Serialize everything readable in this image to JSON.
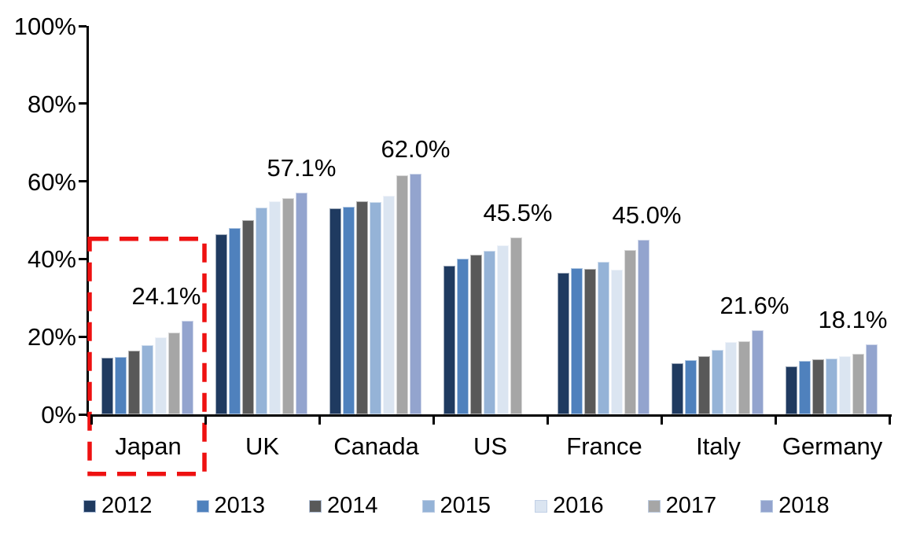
{
  "chart_data": {
    "type": "bar",
    "title": "",
    "xlabel": "",
    "ylabel": "",
    "categories": [
      "Japan",
      "UK",
      "Canada",
      "US",
      "France",
      "Italy",
      "Germany"
    ],
    "series": [
      {
        "name": "2012",
        "color": "#1F3A60",
        "values": [
          14.5,
          46.3,
          53.1,
          38.2,
          36.5,
          13.2,
          12.3
        ]
      },
      {
        "name": "2013",
        "color": "#4F81BD",
        "values": [
          14.8,
          47.9,
          53.4,
          40.0,
          37.6,
          13.9,
          13.7
        ]
      },
      {
        "name": "2014",
        "color": "#595959",
        "values": [
          16.3,
          50.0,
          54.9,
          41.0,
          37.5,
          15.0,
          14.1
        ]
      },
      {
        "name": "2015",
        "color": "#95B3D7",
        "values": [
          17.9,
          53.3,
          54.7,
          42.2,
          39.2,
          16.6,
          14.4
        ]
      },
      {
        "name": "2016",
        "color": "#DBE5F1",
        "values": [
          19.8,
          54.8,
          56.2,
          43.6,
          37.2,
          18.6,
          15.0
        ]
      },
      {
        "name": "2017",
        "color": "#A6A6A6",
        "values": [
          21.0,
          55.7,
          61.5,
          45.5,
          42.3,
          18.9,
          15.6
        ]
      },
      {
        "name": "2018",
        "color": "#93A4CE",
        "values": [
          24.1,
          57.1,
          62.0,
          null,
          45.0,
          21.6,
          18.1
        ]
      }
    ],
    "data_labels": [
      {
        "category": "Japan",
        "text": "24.1%",
        "dx": -27
      },
      {
        "category": "UK",
        "text": "57.1%",
        "dx": 0
      },
      {
        "category": "Canada",
        "text": "62.0%",
        "dx": 0
      },
      {
        "category": "US",
        "text": "45.5%",
        "dx": 2
      },
      {
        "category": "France",
        "text": "45.0%",
        "dx": 4
      },
      {
        "category": "Italy",
        "text": "21.6%",
        "dx": -4
      },
      {
        "category": "Germany",
        "text": "18.1%",
        "dx": -24
      }
    ],
    "y_axis": {
      "min": 0,
      "max": 100,
      "tick_step": 20,
      "tick_labels": [
        "0%",
        "20%",
        "40%",
        "60%",
        "80%",
        "100%"
      ]
    },
    "x_axis": {
      "tick_labels": [
        "Japan",
        "UK",
        "Canada",
        "US",
        "France",
        "Italy",
        "Germany"
      ]
    },
    "legend": {
      "position": "bottom",
      "items": [
        "2012",
        "2013",
        "2014",
        "2015",
        "2016",
        "2017",
        "2018"
      ]
    },
    "grid": "off",
    "highlight": {
      "type": "dashed-box",
      "category": "Japan",
      "color": "#EE1111",
      "top_value": 44.8
    },
    "axis_color": "#000000",
    "text_color": "#000000"
  }
}
